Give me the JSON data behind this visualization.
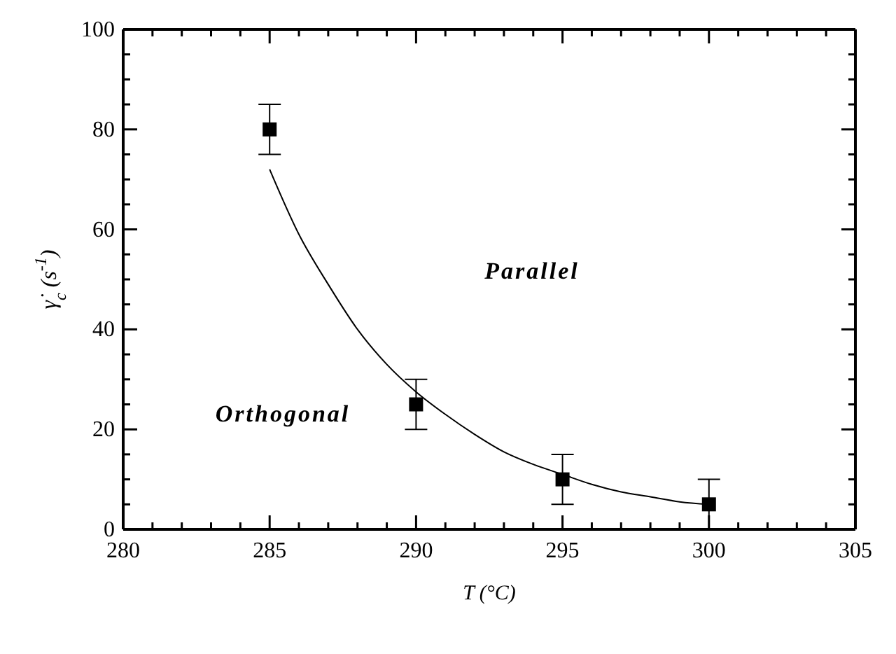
{
  "chart_data": {
    "type": "scatter",
    "xlabel": "T (°C)",
    "ylabel": "γ̇$_{c}$ (s$^{-1}$)",
    "xlim": [
      280,
      305
    ],
    "ylim": [
      0,
      100
    ],
    "xticks": [
      280,
      {
        "value": 281,
        "label": null
      },
      {
        "value": 282,
        "label": null
      },
      {
        "value": 283,
        "label": null
      },
      {
        "value": 284,
        "label": null
      },
      285,
      {
        "value": 286,
        "label": null
      },
      {
        "value": 287,
        "label": null
      },
      {
        "value": 288,
        "label": null
      },
      {
        "value": 289,
        "label": null
      },
      290,
      {
        "value": 291,
        "label": null
      },
      {
        "value": 292,
        "label": null
      },
      {
        "value": 293,
        "label": null
      },
      {
        "value": 294,
        "label": null
      },
      295,
      {
        "value": 296,
        "label": null
      },
      {
        "value": 297,
        "label": null
      },
      {
        "value": 298,
        "label": null
      },
      {
        "value": 299,
        "label": null
      },
      300,
      {
        "value": 301,
        "label": null
      },
      {
        "value": 302,
        "label": null
      },
      {
        "value": 303,
        "label": null
      },
      {
        "value": 304,
        "label": null
      },
      305
    ],
    "yticks": [
      0,
      {
        "value": 5,
        "label": null
      },
      {
        "value": 10,
        "label": null
      },
      {
        "value": 15,
        "label": null
      },
      20,
      {
        "value": 25,
        "label": null
      },
      {
        "value": 30,
        "label": null
      },
      {
        "value": 35,
        "label": null
      },
      40,
      {
        "value": 45,
        "label": null
      },
      {
        "value": 50,
        "label": null
      },
      {
        "value": 55,
        "label": null
      },
      60,
      {
        "value": 65,
        "label": null
      },
      {
        "value": 70,
        "label": null
      },
      {
        "value": 75,
        "label": null
      },
      80,
      {
        "value": 85,
        "label": null
      },
      {
        "value": 90,
        "label": null
      },
      {
        "value": 95,
        "label": null
      },
      100
    ],
    "legend": false,
    "x": [
      285,
      290,
      295,
      300
    ],
    "series": [
      {
        "color": "#000000",
        "marker": "square",
        "values": [
          80,
          25,
          10,
          5
        ],
        "errors": [
          5,
          5,
          5,
          5
        ]
      },
      {
        "type": "line",
        "color": "#000000",
        "marker": "none",
        "line_style": "solid",
        "x": [
          285,
          286,
          287,
          288,
          289,
          290,
          291,
          292,
          293,
          294,
          295,
          296,
          297,
          298,
          299,
          300
        ],
        "values": [
          72,
          59,
          49,
          40,
          33,
          27.5,
          23,
          19,
          15.5,
          13,
          11,
          9,
          7.5,
          6.5,
          5.5,
          5
        ]
      }
    ],
    "annotations": [
      "Parallel",
      "Orthogonal"
    ]
  }
}
